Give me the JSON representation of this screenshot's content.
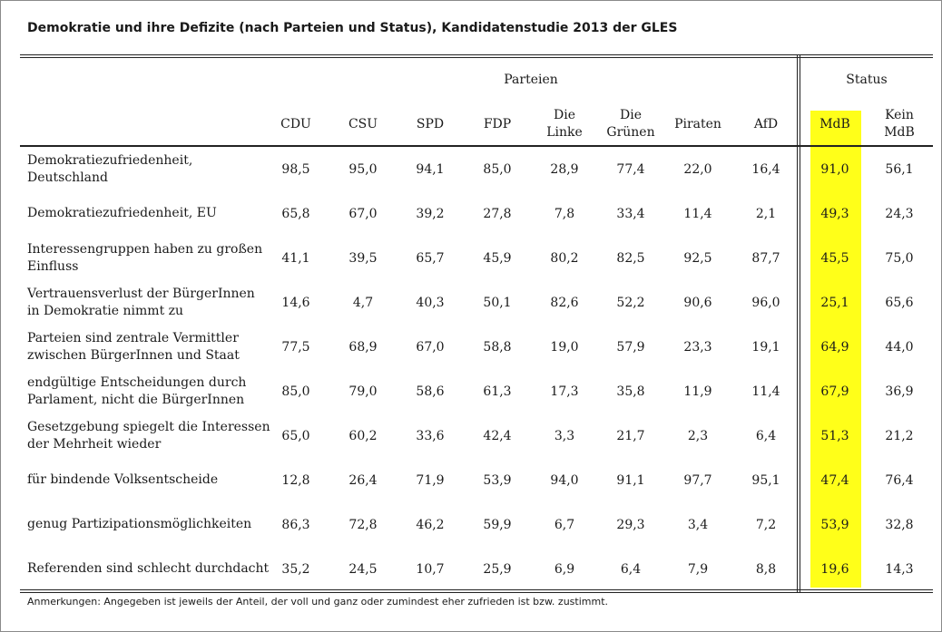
{
  "title": "Demokratie und ihre Defizite (nach Parteien und Status), Kandidatenstudie 2013 der GLES",
  "highlight_color": "#ffff19",
  "groups": {
    "parteien": "Parteien",
    "status": "Status"
  },
  "columns": [
    "CDU",
    "CSU",
    "SPD",
    "FDP",
    "Die\nLinke",
    "Die\nGrünen",
    "Piraten",
    "AfD",
    "MdB",
    "Kein\nMdB"
  ],
  "highlighted_column": "MdB",
  "rows": [
    {
      "label": "Demokratiezufriedenheit,\nDeutschland",
      "values": [
        "98,5",
        "95,0",
        "94,1",
        "85,0",
        "28,9",
        "77,4",
        "22,0",
        "16,4",
        "91,0",
        "56,1"
      ]
    },
    {
      "label": "Demokratiezufriedenheit, EU",
      "values": [
        "65,8",
        "67,0",
        "39,2",
        "27,8",
        "7,8",
        "33,4",
        "11,4",
        "2,1",
        "49,3",
        "24,3"
      ]
    },
    {
      "label": "Interessengruppen haben zu großen\nEinfluss",
      "values": [
        "41,1",
        "39,5",
        "65,7",
        "45,9",
        "80,2",
        "82,5",
        "92,5",
        "87,7",
        "45,5",
        "75,0"
      ]
    },
    {
      "label": "Vertrauensverlust der BürgerInnen\nin Demokratie nimmt zu",
      "values": [
        "14,6",
        "4,7",
        "40,3",
        "50,1",
        "82,6",
        "52,2",
        "90,6",
        "96,0",
        "25,1",
        "65,6"
      ]
    },
    {
      "label": "Parteien sind zentrale Vermittler\nzwischen BürgerInnen und Staat",
      "values": [
        "77,5",
        "68,9",
        "67,0",
        "58,8",
        "19,0",
        "57,9",
        "23,3",
        "19,1",
        "64,9",
        "44,0"
      ]
    },
    {
      "label": "endgültige Entscheidungen durch\nParlament, nicht die BürgerInnen",
      "values": [
        "85,0",
        "79,0",
        "58,6",
        "61,3",
        "17,3",
        "35,8",
        "11,9",
        "11,4",
        "67,9",
        "36,9"
      ]
    },
    {
      "label": "Gesetzgebung spiegelt die Interessen\nder Mehrheit wieder",
      "values": [
        "65,0",
        "60,2",
        "33,6",
        "42,4",
        "3,3",
        "21,7",
        "2,3",
        "6,4",
        "51,3",
        "21,2"
      ]
    },
    {
      "label": "für bindende Volksentscheide",
      "values": [
        "12,8",
        "26,4",
        "71,9",
        "53,9",
        "94,0",
        "91,1",
        "97,7",
        "95,1",
        "47,4",
        "76,4"
      ]
    },
    {
      "label": "genug Partizipationsmöglichkeiten",
      "values": [
        "86,3",
        "72,8",
        "46,2",
        "59,9",
        "6,7",
        "29,3",
        "3,4",
        "7,2",
        "53,9",
        "32,8"
      ]
    },
    {
      "label": "Referenden sind schlecht durchdacht",
      "values": [
        "35,2",
        "24,5",
        "10,7",
        "25,9",
        "6,9",
        "6,4",
        "7,9",
        "8,8",
        "19,6",
        "14,3"
      ]
    }
  ],
  "note": "Anmerkungen: Angegeben ist jeweils der Anteil, der voll und ganz oder zumindest eher zufrieden ist bzw. zustimmt."
}
